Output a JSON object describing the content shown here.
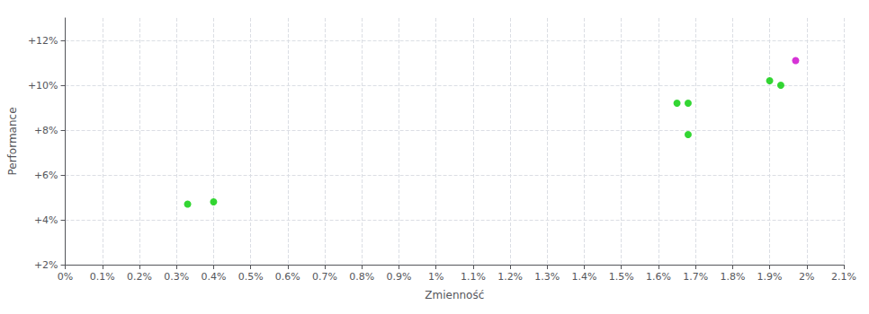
{
  "chart_data": {
    "type": "scatter",
    "xlabel": "Zmienność",
    "ylabel": "Performance",
    "xlim": [
      0.0,
      0.021
    ],
    "ylim": [
      0.02,
      0.13
    ],
    "xticks": [
      {
        "value": 0.0,
        "label": "0%"
      },
      {
        "value": 0.001,
        "label": "0.1%"
      },
      {
        "value": 0.002,
        "label": "0.2%"
      },
      {
        "value": 0.003,
        "label": "0.3%"
      },
      {
        "value": 0.004,
        "label": "0.4%"
      },
      {
        "value": 0.005,
        "label": "0.5%"
      },
      {
        "value": 0.006,
        "label": "0.6%"
      },
      {
        "value": 0.007,
        "label": "0.7%"
      },
      {
        "value": 0.008,
        "label": "0.8%"
      },
      {
        "value": 0.009,
        "label": "0.9%"
      },
      {
        "value": 0.01,
        "label": "1%"
      },
      {
        "value": 0.011,
        "label": "1.1%"
      },
      {
        "value": 0.012,
        "label": "1.2%"
      },
      {
        "value": 0.013,
        "label": "1.3%"
      },
      {
        "value": 0.014,
        "label": "1.4%"
      },
      {
        "value": 0.015,
        "label": "1.5%"
      },
      {
        "value": 0.016,
        "label": "1.6%"
      },
      {
        "value": 0.017,
        "label": "1.7%"
      },
      {
        "value": 0.018,
        "label": "1.8%"
      },
      {
        "value": 0.019,
        "label": "1.9%"
      },
      {
        "value": 0.02,
        "label": "2%"
      },
      {
        "value": 0.021,
        "label": "2.1%"
      }
    ],
    "yticks": [
      {
        "value": 0.02,
        "label": "+2%"
      },
      {
        "value": 0.04,
        "label": "+4%"
      },
      {
        "value": 0.06,
        "label": "+6%"
      },
      {
        "value": 0.08,
        "label": "+8%"
      },
      {
        "value": 0.1,
        "label": "+10%"
      },
      {
        "value": 0.12,
        "label": "+12%"
      }
    ],
    "grid": true,
    "series": [
      {
        "color": "#00cc00",
        "x": [
          0.0033,
          0.004,
          0.0165,
          0.0168,
          0.0168,
          0.019,
          0.0193
        ],
        "values": [
          0.047,
          0.048,
          0.092,
          0.092,
          0.078,
          0.102,
          0.1
        ]
      },
      {
        "color": "#cc00cc",
        "x": [
          0.0197
        ],
        "values": [
          0.111
        ]
      }
    ]
  }
}
